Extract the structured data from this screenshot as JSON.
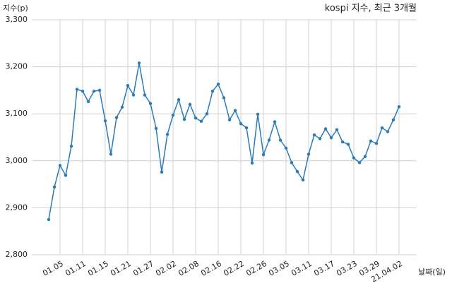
{
  "chart_data": {
    "type": "line",
    "title": "kospi 지수, 최근 3개월",
    "y_label": "지수(p)",
    "x_label": "날짜(일)",
    "categories": [
      null,
      null,
      "01.05",
      null,
      null,
      null,
      "01.11",
      null,
      null,
      null,
      "01.15",
      null,
      null,
      null,
      "01.21",
      null,
      null,
      null,
      "01.27",
      null,
      null,
      null,
      "02.02",
      null,
      null,
      null,
      "02.08",
      null,
      null,
      null,
      "02.16",
      null,
      null,
      null,
      "02.22",
      null,
      null,
      null,
      "02.26",
      null,
      null,
      null,
      "03.05",
      null,
      null,
      null,
      "03.11",
      null,
      null,
      null,
      "03.17",
      null,
      null,
      null,
      "03.23",
      null,
      null,
      null,
      "03.29",
      null,
      null,
      null,
      "21.04.02"
    ],
    "series": [
      {
        "name": "kospi",
        "color": "#2b7bb9",
        "values": [
          2875,
          2944,
          2990,
          2969,
          3031,
          3152,
          3148,
          3126,
          3148,
          3150,
          3085,
          3014,
          3092,
          3114,
          3160,
          3140,
          3208,
          3140,
          3122,
          3069,
          2976,
          3056,
          3097,
          3130,
          3088,
          3120,
          3091,
          3084,
          3100,
          3148,
          3163,
          3134,
          3087,
          3107,
          3079,
          3070,
          2995,
          3099,
          3013,
          3044,
          3083,
          3044,
          3027,
          2996,
          2977,
          2959,
          3014,
          3055,
          3047,
          3068,
          3049,
          3066,
          3040,
          3035,
          3006,
          2996,
          3009,
          3042,
          3037,
          3070,
          3062,
          3087,
          3115
        ]
      }
    ],
    "ylim": [
      2800,
      3300
    ],
    "yticks": [
      {
        "value": 2800,
        "label": "2,800"
      },
      {
        "value": 2900,
        "label": "2,900"
      },
      {
        "value": 3000,
        "label": "3,000"
      },
      {
        "value": 3100,
        "label": "3,100"
      },
      {
        "value": 3200,
        "label": "3,200"
      },
      {
        "value": 3300,
        "label": "3,300"
      }
    ],
    "grid": true
  }
}
